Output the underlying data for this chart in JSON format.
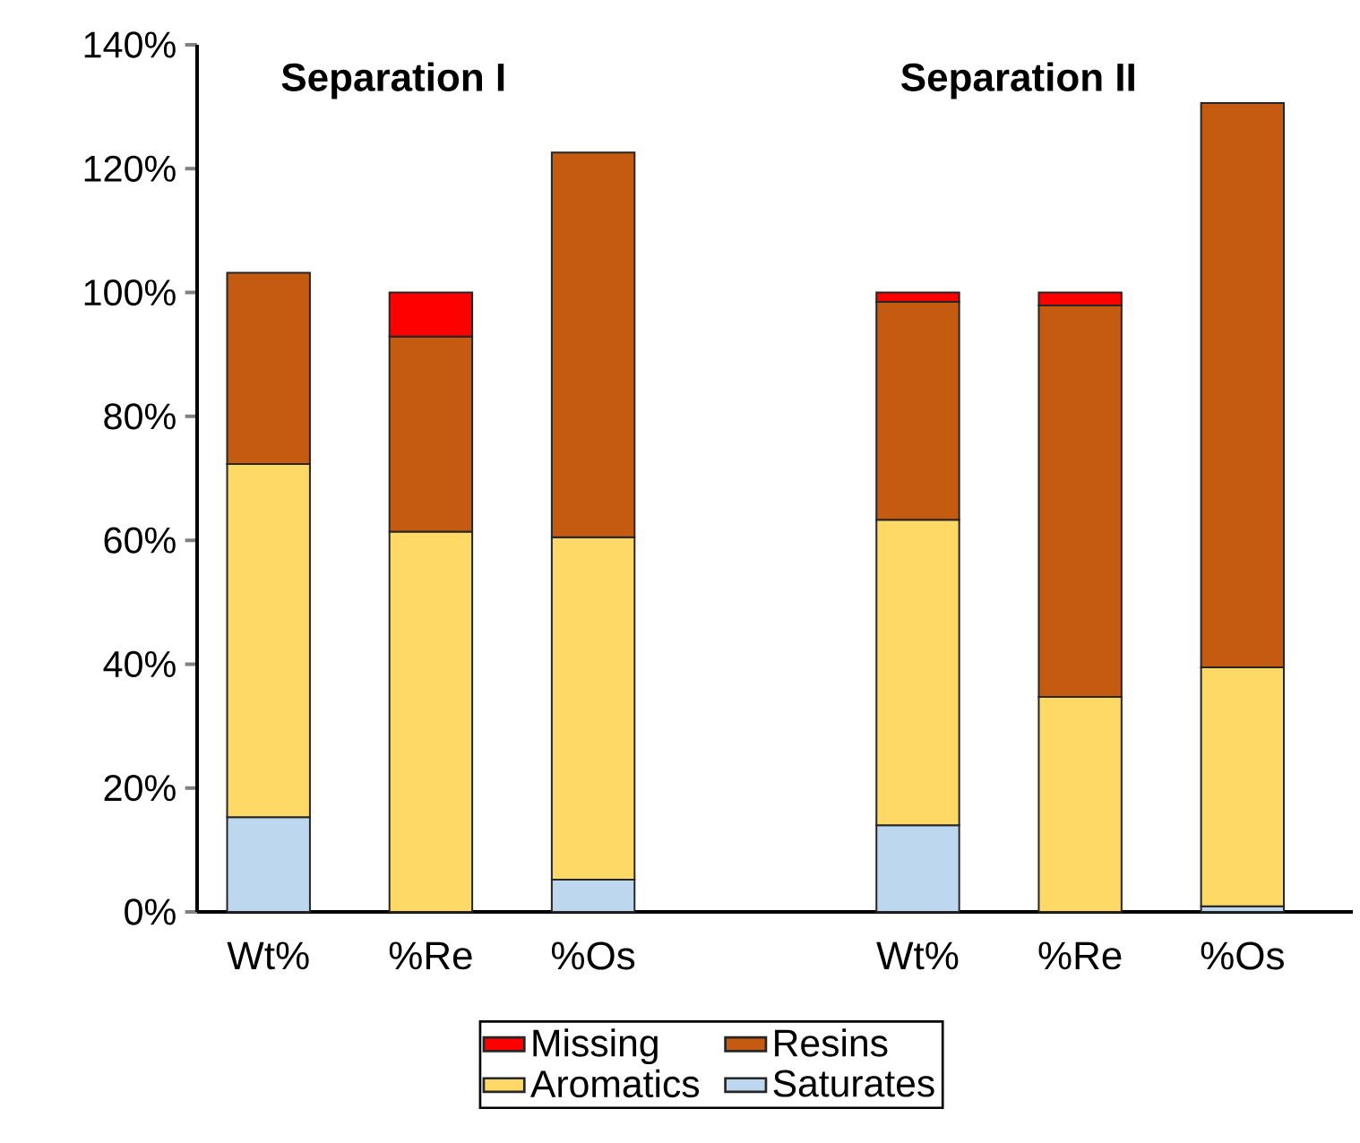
{
  "chart_data": {
    "type": "bar",
    "stacked": true,
    "categories": [
      "Wt%",
      "%Re",
      "%Os",
      null,
      "Wt%",
      "%Re",
      "%Os"
    ],
    "series": [
      {
        "name": "Saturates",
        "color": "#bdd7ee",
        "values": [
          15.3,
          null,
          5.2,
          null,
          14.0,
          null,
          0.9
        ]
      },
      {
        "name": "Aromatics",
        "color": "#ffd966",
        "values": [
          57.0,
          61.4,
          55.3,
          null,
          49.3,
          34.7,
          38.6
        ]
      },
      {
        "name": "Resins",
        "color": "#c55a11",
        "values": [
          30.9,
          31.5,
          62.1,
          null,
          35.2,
          63.2,
          91.1
        ]
      },
      {
        "name": "Missing",
        "color": "#ff0000",
        "values": [
          null,
          7.1,
          null,
          null,
          1.5,
          2.1,
          null
        ]
      }
    ],
    "ylim": [
      0,
      140
    ],
    "yticks": [
      {
        "value": 0,
        "label": "0%"
      },
      {
        "value": 20,
        "label": "20%"
      },
      {
        "value": 40,
        "label": "40%"
      },
      {
        "value": 60,
        "label": "60%"
      },
      {
        "value": 80,
        "label": "80%"
      },
      {
        "value": 100,
        "label": "100%"
      },
      {
        "value": 120,
        "label": "120%"
      },
      {
        "value": 140,
        "label": "140%"
      }
    ],
    "legend": "bottom",
    "annotations": [
      "Separation I",
      "Separation II"
    ]
  }
}
